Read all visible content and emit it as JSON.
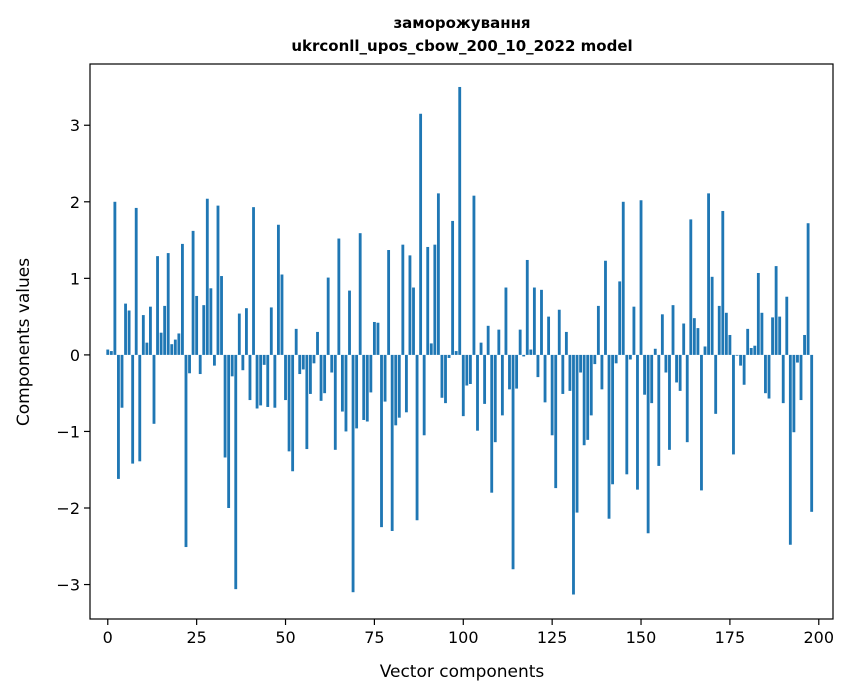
{
  "chart_data": {
    "type": "bar",
    "title": "заморожування",
    "subtitle": "ukrconll_upos_cbow_200_10_2022 model",
    "xlabel": "Vector components",
    "ylabel": "Components values",
    "xlim": [
      -5,
      204
    ],
    "ylim": [
      -3.45,
      3.8
    ],
    "xticks": [
      0,
      25,
      50,
      75,
      100,
      125,
      150,
      175,
      200
    ],
    "yticks": [
      -3,
      -2,
      -1,
      0,
      1,
      2,
      3
    ],
    "bar_color": "#1f77b4",
    "values": [
      0.07,
      0.05,
      2.0,
      -1.62,
      -0.69,
      0.67,
      0.58,
      -1.42,
      1.92,
      -1.39,
      0.52,
      0.16,
      0.63,
      -0.9,
      1.29,
      0.29,
      0.64,
      1.33,
      0.14,
      0.2,
      0.28,
      1.45,
      -2.51,
      -0.24,
      1.62,
      0.77,
      -0.25,
      0.65,
      2.04,
      0.87,
      -0.14,
      1.95,
      1.03,
      -1.34,
      -2.0,
      -0.28,
      -3.06,
      0.54,
      -0.2,
      0.61,
      -0.59,
      1.93,
      -0.7,
      -0.66,
      -0.13,
      -0.68,
      0.62,
      -0.69,
      1.7,
      1.05,
      -0.59,
      -1.26,
      -1.52,
      0.34,
      -0.25,
      -0.19,
      -1.23,
      -0.51,
      -0.11,
      0.3,
      -0.6,
      -0.5,
      1.01,
      -0.23,
      -1.24,
      1.52,
      -0.74,
      -1.0,
      0.84,
      -3.1,
      -0.96,
      1.59,
      -0.85,
      -0.87,
      -0.49,
      0.43,
      0.42,
      -2.25,
      -0.61,
      1.37,
      -2.3,
      -0.92,
      -0.82,
      1.44,
      -0.75,
      1.3,
      0.88,
      -2.16,
      3.15,
      -1.05,
      1.41,
      0.15,
      1.44,
      2.11,
      -0.56,
      -0.63,
      -0.04,
      1.75,
      0.05,
      3.5,
      -0.8,
      -0.4,
      -0.38,
      2.08,
      -0.99,
      0.16,
      -0.64,
      0.38,
      -1.8,
      -1.14,
      0.33,
      -0.79,
      0.88,
      -0.45,
      -2.8,
      -0.44,
      0.33,
      -0.02,
      1.24,
      0.07,
      0.88,
      -0.29,
      0.85,
      -0.62,
      0.5,
      -1.05,
      -1.74,
      0.59,
      -0.51,
      0.3,
      -0.47,
      -3.13,
      -2.06,
      -0.23,
      -1.18,
      -1.11,
      -0.79,
      -0.12,
      0.64,
      -0.45,
      1.23,
      -2.14,
      -1.69,
      -0.11,
      0.96,
      2.0,
      -1.56,
      -0.06,
      0.63,
      -1.76,
      2.02,
      -0.52,
      -2.33,
      -0.63,
      0.08,
      -1.45,
      0.53,
      -0.23,
      -1.24,
      0.65,
      -0.36,
      -0.47,
      0.41,
      -1.14,
      1.77,
      0.48,
      0.35,
      -1.77,
      0.11,
      2.11,
      1.02,
      -0.77,
      0.64,
      1.88,
      0.55,
      0.26,
      -1.3,
      -0.01,
      -0.14,
      -0.39,
      0.34,
      0.09,
      0.12,
      1.07,
      0.55,
      -0.5,
      -0.57,
      0.49,
      1.16,
      0.5,
      -0.63,
      0.76,
      -2.48,
      -1.01,
      -0.1,
      -0.59,
      0.26,
      1.72,
      -2.05
    ]
  }
}
